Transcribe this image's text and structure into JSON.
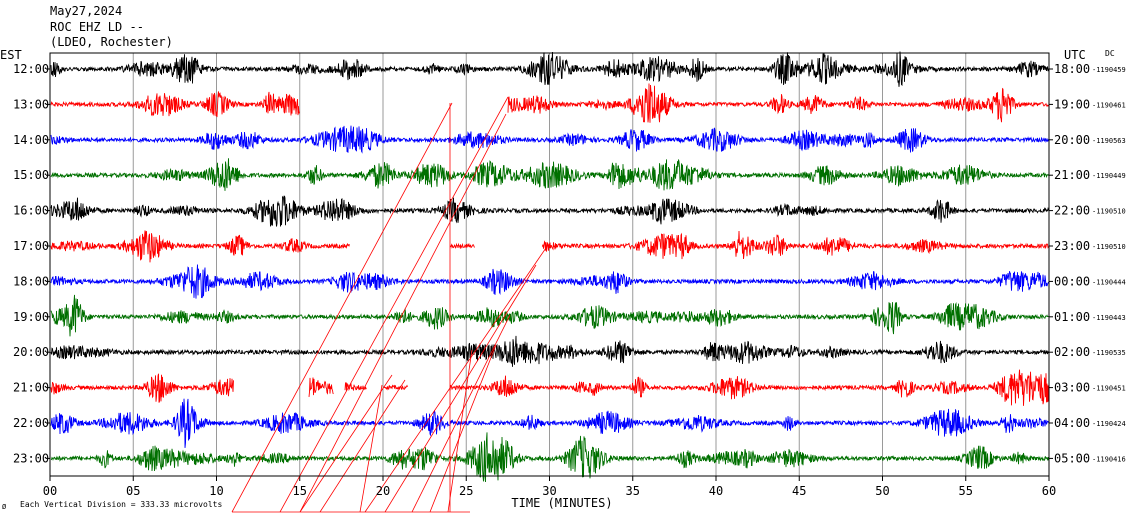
{
  "header": {
    "date": "May27,2024",
    "station": "ROC EHZ LD --",
    "network": "(LDEO, Rochester)"
  },
  "left_zone_label": "EST",
  "right_zone_label": "UTC",
  "dc_label": "DC",
  "footer": {
    "scale_note": "Each Vertical Division =  333.33 microvolts",
    "x_axis_label": "TIME (MINUTES)"
  },
  "colors": {
    "cycle": [
      "#000000",
      "#ff0000",
      "#0000ff",
      "#007000"
    ],
    "grid": "#9a9a9a",
    "axis": "#000000"
  },
  "chart_data": {
    "type": "line",
    "x_range": [
      0,
      60
    ],
    "x_ticks": [
      "00",
      "05",
      "10",
      "15",
      "20",
      "25",
      "30",
      "35",
      "40",
      "45",
      "50",
      "55",
      "60"
    ],
    "rows": [
      {
        "est": "12:00",
        "utc": "18:00",
        "dc": "-1190459",
        "gaps": []
      },
      {
        "est": "13:00",
        "utc": "19:00",
        "dc": "-1190461",
        "gaps": [
          [
            15.0,
            27.5
          ]
        ]
      },
      {
        "est": "14:00",
        "utc": "20:00",
        "dc": "-1190563",
        "gaps": []
      },
      {
        "est": "15:00",
        "utc": "21:00",
        "dc": "-1190449",
        "gaps": []
      },
      {
        "est": "16:00",
        "utc": "22:00",
        "dc": "-1190510",
        "gaps": []
      },
      {
        "est": "17:00",
        "utc": "23:00",
        "dc": "-1190510",
        "gaps": [
          [
            18.0,
            24.0
          ],
          [
            25.5,
            29.5
          ]
        ]
      },
      {
        "est": "18:00",
        "utc": "00:00",
        "dc": "-1190444",
        "gaps": []
      },
      {
        "est": "19:00",
        "utc": "01:00",
        "dc": "-1190443",
        "gaps": []
      },
      {
        "est": "20:00",
        "utc": "02:00",
        "dc": "-1190535",
        "gaps": []
      },
      {
        "est": "21:00",
        "utc": "03:00",
        "dc": "-1190451",
        "gaps": [
          [
            11.0,
            15.5
          ],
          [
            17.0,
            17.7
          ],
          [
            19.0,
            20.0
          ],
          [
            21.5,
            24.0
          ]
        ]
      },
      {
        "est": "22:00",
        "utc": "04:00",
        "dc": "-1190424",
        "gaps": []
      },
      {
        "est": "23:00",
        "utc": "05:00",
        "dc": "-1190416",
        "gaps": []
      }
    ]
  }
}
